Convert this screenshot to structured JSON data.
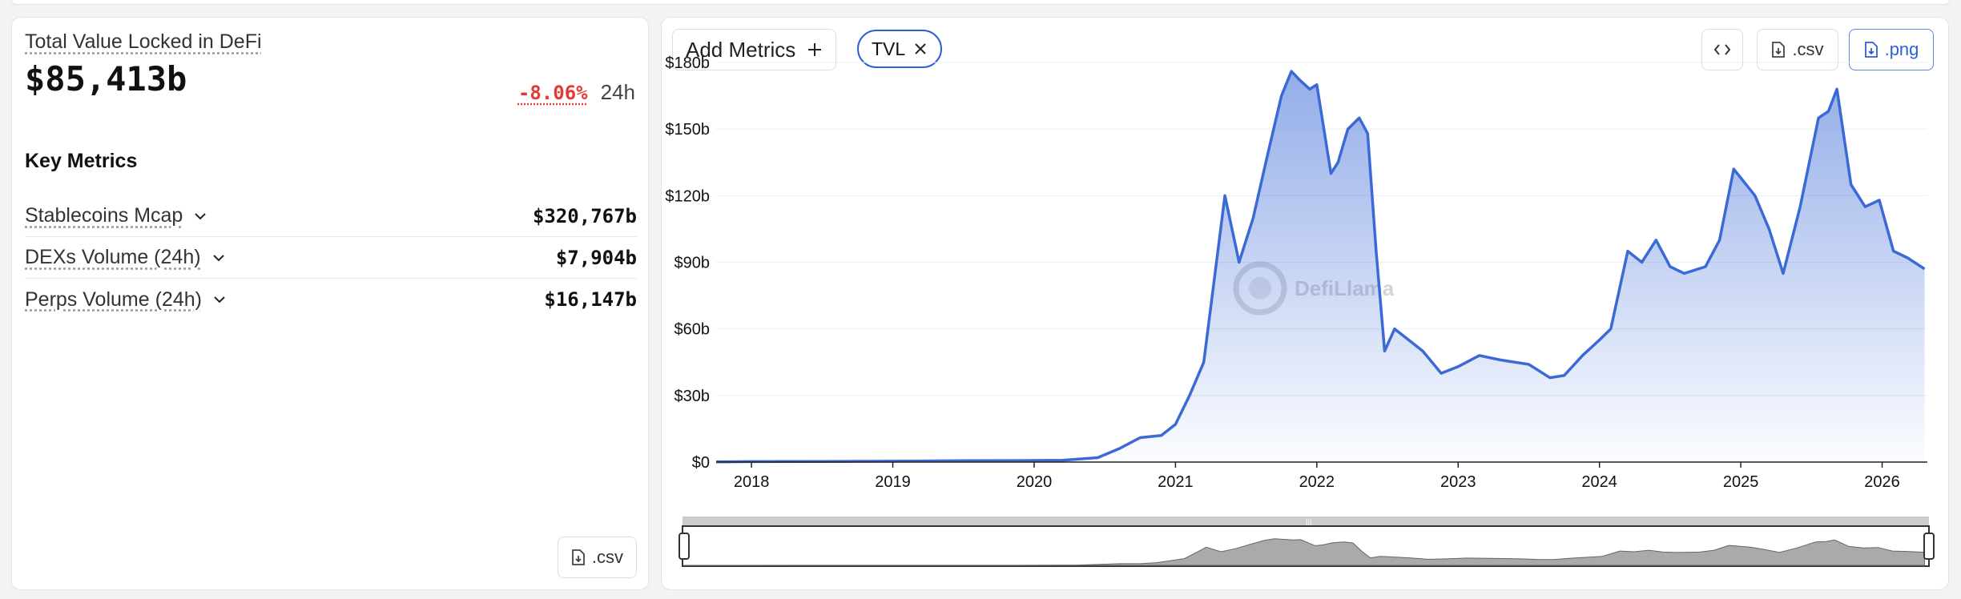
{
  "summary": {
    "title": "Total Value Locked in DeFi",
    "value": "$85,413b",
    "change_pct": "-8.06%",
    "change_period": "24h"
  },
  "key_metrics": {
    "title": "Key Metrics",
    "items": [
      {
        "label": "Stablecoins Mcap",
        "value": "$320,767b"
      },
      {
        "label": "DEXs Volume (24h)",
        "value": "$7,904b"
      },
      {
        "label": "Perps Volume (24h)",
        "value": "$16,147b"
      }
    ],
    "csv_label": ".csv"
  },
  "toolbar": {
    "add_metrics_label": "Add Metrics",
    "chip_label": "TVL",
    "csv_label": ".csv",
    "png_label": ".png"
  },
  "colors": {
    "line": "#3b6ad6",
    "accent": "#2e5fd6",
    "negative": "#e53935"
  },
  "icons": [
    "chevron-down-icon",
    "plus-icon",
    "close-icon",
    "code-icon",
    "file-download-icon"
  ],
  "watermark": "DefiLlama",
  "chart_data": {
    "type": "area",
    "series": [
      {
        "points": [
          [
            2017.75,
            0.1
          ],
          [
            2018.0,
            0.2
          ],
          [
            2018.5,
            0.3
          ],
          [
            2019.0,
            0.4
          ],
          [
            2019.5,
            0.6
          ],
          [
            2019.9,
            0.7
          ],
          [
            2020.2,
            0.8
          ],
          [
            2020.45,
            2
          ],
          [
            2020.6,
            6
          ],
          [
            2020.75,
            11
          ],
          [
            2020.9,
            12
          ],
          [
            2021.0,
            17
          ],
          [
            2021.1,
            30
          ],
          [
            2021.2,
            45
          ],
          [
            2021.28,
            85
          ],
          [
            2021.35,
            120
          ],
          [
            2021.45,
            90
          ],
          [
            2021.55,
            110
          ],
          [
            2021.65,
            138
          ],
          [
            2021.75,
            165
          ],
          [
            2021.82,
            176
          ],
          [
            2021.88,
            172
          ],
          [
            2021.95,
            168
          ],
          [
            2022.0,
            170
          ],
          [
            2022.1,
            130
          ],
          [
            2022.15,
            135
          ],
          [
            2022.22,
            150
          ],
          [
            2022.3,
            155
          ],
          [
            2022.36,
            148
          ],
          [
            2022.42,
            95
          ],
          [
            2022.48,
            50
          ],
          [
            2022.55,
            60
          ],
          [
            2022.65,
            55
          ],
          [
            2022.75,
            50
          ],
          [
            2022.88,
            40
          ],
          [
            2023.0,
            43
          ],
          [
            2023.15,
            48
          ],
          [
            2023.3,
            46
          ],
          [
            2023.5,
            44
          ],
          [
            2023.65,
            38
          ],
          [
            2023.75,
            39
          ],
          [
            2023.88,
            48
          ],
          [
            2024.0,
            55
          ],
          [
            2024.08,
            60
          ],
          [
            2024.2,
            95
          ],
          [
            2024.3,
            90
          ],
          [
            2024.4,
            100
          ],
          [
            2024.5,
            88
          ],
          [
            2024.6,
            85
          ],
          [
            2024.75,
            88
          ],
          [
            2024.85,
            100
          ],
          [
            2024.95,
            132
          ],
          [
            2025.1,
            120
          ],
          [
            2025.2,
            105
          ],
          [
            2025.3,
            85
          ],
          [
            2025.42,
            115
          ],
          [
            2025.55,
            155
          ],
          [
            2025.62,
            158
          ],
          [
            2025.68,
            168
          ],
          [
            2025.78,
            125
          ],
          [
            2025.88,
            115
          ],
          [
            2025.98,
            118
          ],
          [
            2026.08,
            95
          ],
          [
            2026.18,
            92
          ],
          [
            2026.3,
            87
          ]
        ]
      }
    ],
    "x_ticks": [
      "2018",
      "2019",
      "2020",
      "2021",
      "2022",
      "2023",
      "2024",
      "2025",
      "2026"
    ],
    "y_ticks": [
      "$0",
      "$30b",
      "$60b",
      "$90b",
      "$120b",
      "$150b",
      "$180b"
    ],
    "xlim": [
      2017.75,
      2026.32
    ],
    "ylim": [
      0,
      180
    ],
    "grid": true,
    "legend": "none"
  }
}
